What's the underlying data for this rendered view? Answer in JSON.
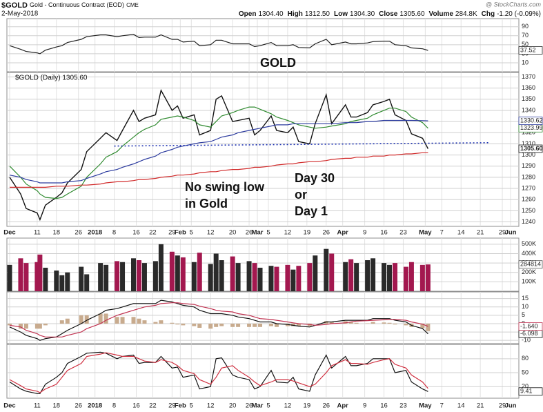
{
  "header": {
    "symbol": "$GOLD",
    "name": "Gold - Continuous Contract (EOD)",
    "exchange": "CME",
    "date": "2-May-2018",
    "source": "@ StockCharts.com",
    "quote": [
      {
        "label": "Open",
        "value": "1304.40"
      },
      {
        "label": "High",
        "value": "1312.50"
      },
      {
        "label": "Low",
        "value": "1304.30"
      },
      {
        "label": "Close",
        "value": "1305.60"
      },
      {
        "label": "Volume",
        "value": "284.8K"
      },
      {
        "label": "Chg",
        "value": "-1.20 (-0.09%)"
      }
    ]
  },
  "x_axis": {
    "x": [
      0,
      4,
      6,
      10,
      11,
      13,
      17,
      19,
      21,
      26,
      28,
      33,
      35,
      39,
      41,
      45,
      47,
      49,
      53,
      55,
      59,
      61,
      63,
      67,
      69,
      73,
      75,
      77,
      81,
      83,
      87,
      89,
      91,
      95,
      97,
      101,
      103,
      105,
      109,
      111,
      115,
      117,
      122,
      124,
      126,
      130,
      132,
      136,
      138,
      140,
      144,
      146,
      150,
      152
    ],
    "xlim": [
      -1,
      185
    ],
    "xticks": [
      {
        "value": 0,
        "label": "Dec"
      },
      {
        "value": 10,
        "label": "11"
      },
      {
        "value": 17,
        "label": "18"
      },
      {
        "value": 25,
        "label": "26"
      },
      {
        "value": 31,
        "label": "2018"
      },
      {
        "value": 38,
        "label": "8"
      },
      {
        "value": 46,
        "label": "16"
      },
      {
        "value": 52,
        "label": "22"
      },
      {
        "value": 59,
        "label": "29"
      },
      {
        "value": 62,
        "label": "Feb"
      },
      {
        "value": 66,
        "label": "5"
      },
      {
        "value": 73,
        "label": "12"
      },
      {
        "value": 81,
        "label": "20"
      },
      {
        "value": 87,
        "label": "26"
      },
      {
        "value": 90,
        "label": "Mar"
      },
      {
        "value": 94,
        "label": "5"
      },
      {
        "value": 101,
        "label": "12"
      },
      {
        "value": 108,
        "label": "19"
      },
      {
        "value": 115,
        "label": "26"
      },
      {
        "value": 121,
        "label": "Apr"
      },
      {
        "value": 129,
        "label": "9"
      },
      {
        "value": 136,
        "label": "16"
      },
      {
        "value": 143,
        "label": "23"
      },
      {
        "value": 151,
        "label": "May"
      },
      {
        "value": 157,
        "label": "7"
      },
      {
        "value": 164,
        "label": "14"
      },
      {
        "value": 171,
        "label": "21"
      },
      {
        "value": 179,
        "label": "29"
      },
      {
        "value": 182,
        "label": "Jun"
      }
    ]
  },
  "chart_data": [
    {
      "type": "line",
      "ylim": [
        -10,
        108
      ],
      "yticks": [
        90,
        70,
        50,
        30,
        10
      ],
      "grid": true,
      "annotations": [
        {
          "lines": [
            "GOLD"
          ],
          "color": "#1f3fd6"
        }
      ],
      "series": [
        {
          "color": "#222222",
          "last_label": "37.52",
          "values": [
            48,
            40,
            35,
            32,
            30,
            38,
            45,
            48,
            55,
            62,
            68,
            72,
            72,
            68,
            70,
            73,
            66,
            67,
            67,
            72,
            62,
            62,
            56,
            58,
            48,
            50,
            60,
            60,
            52,
            52,
            52,
            46,
            48,
            55,
            48,
            48,
            50,
            44,
            43,
            52,
            62,
            50,
            56,
            52,
            52,
            54,
            57,
            58,
            58,
            50,
            48,
            43,
            41,
            37.52
          ]
        }
      ]
    },
    {
      "type": "line",
      "label": "$GOLD (Daily) 1305.60",
      "ylim": [
        1236,
        1374
      ],
      "yticks": [
        1370,
        1360,
        1350,
        1340,
        1330,
        1320,
        1310,
        1300,
        1290,
        1280,
        1270,
        1260,
        1250,
        1240
      ],
      "grid": true,
      "series": [
        {
          "color": "#111111",
          "last_label": "1305.60",
          "values": [
            1280,
            1265,
            1252,
            1248,
            1242,
            1255,
            1262,
            1266,
            1275,
            1287,
            1303,
            1315,
            1320,
            1313,
            1322,
            1340,
            1330,
            1333,
            1336,
            1358,
            1340,
            1344,
            1333,
            1336,
            1318,
            1322,
            1350,
            1353,
            1330,
            1331,
            1333,
            1318,
            1322,
            1335,
            1322,
            1320,
            1325,
            1312,
            1310,
            1328,
            1354,
            1328,
            1345,
            1334,
            1334,
            1338,
            1345,
            1348,
            1350,
            1336,
            1331,
            1319,
            1315,
            1305.6
          ]
        },
        {
          "color": "#2f8a2f",
          "last_label": "1323.99",
          "values": [
            1290,
            1280,
            1274,
            1268,
            1265,
            1262,
            1261,
            1262,
            1265,
            1272,
            1280,
            1292,
            1298,
            1303,
            1308,
            1316,
            1320,
            1323,
            1327,
            1332,
            1334,
            1335,
            1334,
            1331,
            1327,
            1325,
            1330,
            1335,
            1338,
            1340,
            1343,
            1343,
            1341,
            1337,
            1334,
            1331,
            1329,
            1327,
            1325,
            1324,
            1325,
            1326,
            1328,
            1330,
            1331,
            1333,
            1336,
            1340,
            1342,
            1342,
            1339,
            1334,
            1329,
            1323.99
          ]
        },
        {
          "color": "#2b3a9e",
          "last_label": "1330.62",
          "values": [
            1282,
            1280,
            1278,
            1276,
            1275,
            1275,
            1275,
            1275,
            1276,
            1277,
            1279,
            1283,
            1285,
            1287,
            1289,
            1292,
            1294,
            1296,
            1299,
            1302,
            1305,
            1307,
            1308,
            1310,
            1311,
            1312,
            1314,
            1316,
            1318,
            1320,
            1322,
            1323,
            1324,
            1326,
            1327,
            1327,
            1328,
            1328,
            1328,
            1328,
            1328,
            1328,
            1329,
            1329,
            1329,
            1330,
            1330,
            1331,
            1331,
            1331,
            1331,
            1331,
            1330.8,
            1330.62
          ]
        },
        {
          "color": "#d12a2a",
          "values": [
            1271,
            1271,
            1271,
            1271,
            1271,
            1271,
            1272,
            1272,
            1272,
            1273,
            1273,
            1274,
            1275,
            1276,
            1276,
            1277,
            1278,
            1278,
            1279,
            1280,
            1281,
            1282,
            1282,
            1283,
            1284,
            1285,
            1285,
            1286,
            1287,
            1287,
            1288,
            1289,
            1289,
            1290,
            1291,
            1292,
            1292,
            1293,
            1294,
            1294,
            1295,
            1296,
            1297,
            1297,
            1298,
            1298,
            1299,
            1299,
            1300,
            1300,
            1301,
            1301,
            1302,
            1302
          ]
        }
      ],
      "trendline": {
        "x": [
          38,
          174
        ],
        "values": [
          1308,
          1311
        ],
        "color": "#1a2fb0"
      },
      "annotations": [
        {
          "lines": [
            "No swing low",
            "in Gold"
          ],
          "color": "#9b2fd9"
        },
        {
          "lines": [
            "Day 30",
            "or",
            "Day 1"
          ],
          "color": "#e3231b"
        }
      ]
    },
    {
      "type": "bar",
      "ylim": [
        0,
        565000
      ],
      "yticks": [
        {
          "value": 500000,
          "label": "500K"
        },
        {
          "value": 400000,
          "label": "400K"
        },
        {
          "value": 300000,
          "label": "300K"
        },
        {
          "value": 200000,
          "label": "200K"
        },
        {
          "value": 100000,
          "label": "100K"
        }
      ],
      "grid": true,
      "up_color": "#2a2a2a",
      "down_color": "#a3184f",
      "series": [
        {
          "last_label": "284814",
          "values": [
            280000,
            350000,
            300000,
            310000,
            390000,
            250000,
            220000,
            170000,
            200000,
            260000,
            180000,
            300000,
            280000,
            320000,
            310000,
            350000,
            330000,
            300000,
            320000,
            500000,
            420000,
            380000,
            360000,
            310000,
            410000,
            290000,
            400000,
            330000,
            370000,
            300000,
            320000,
            300000,
            250000,
            270000,
            260000,
            280000,
            230000,
            270000,
            300000,
            380000,
            450000,
            400000,
            310000,
            340000,
            300000,
            330000,
            350000,
            300000,
            280000,
            300000,
            260000,
            310000,
            280000,
            284814
          ]
        }
      ]
    },
    {
      "type": "line",
      "ylim": [
        -12,
        19
      ],
      "yticks": [
        15,
        10,
        5,
        0,
        -5,
        -10
      ],
      "grid": true,
      "histogram": {
        "color": "#c8ab8e",
        "values": [
          -1,
          -3,
          -3,
          -3,
          -3,
          -1,
          0,
          2,
          3,
          5,
          5,
          6,
          6,
          4,
          4,
          4,
          3,
          2,
          1,
          2,
          0.5,
          -0.5,
          -1,
          -1.5,
          -2.5,
          -3,
          -2,
          -1.5,
          -2,
          -2,
          -2,
          -2,
          -2,
          -1.5,
          -2,
          -1.5,
          -1.5,
          -1.5,
          -1.5,
          0,
          1.5,
          1,
          1.5,
          1,
          0.5,
          0.2,
          1,
          0.7,
          0.5,
          -0.5,
          -1,
          -2,
          -2.7,
          -4.458
        ]
      },
      "series": [
        {
          "color": "#111111",
          "last_label": "-6.098",
          "values": [
            -2,
            -5,
            -7,
            -9,
            -10,
            -9,
            -8,
            -6,
            -4,
            0,
            2,
            6,
            8,
            9,
            10,
            12,
            12,
            12,
            12,
            14,
            13,
            12,
            11,
            10,
            8,
            6,
            6,
            6,
            5,
            4,
            3,
            2,
            1,
            1,
            0,
            -0.5,
            -1,
            -1.5,
            -2,
            -1,
            1,
            1,
            2,
            2,
            2,
            2,
            3,
            3,
            3,
            2,
            1,
            -1,
            -3,
            -6.098
          ]
        },
        {
          "color": "#c0304f",
          "last_label": "-1.640",
          "values": [
            -1,
            -2,
            -4,
            -6,
            -7,
            -8,
            -8,
            -8,
            -7,
            -5,
            -3,
            0,
            2,
            5,
            6,
            8,
            9,
            10,
            11,
            12,
            12.5,
            12.5,
            12,
            11.5,
            10.5,
            9,
            8,
            7.5,
            7,
            6,
            5,
            4,
            3,
            2.5,
            2,
            1,
            0.5,
            0,
            -0.5,
            -1,
            -0.5,
            0,
            0.5,
            1,
            1.5,
            1.8,
            2,
            2.3,
            2.5,
            2.5,
            2,
            1,
            -0.3,
            -1.64
          ]
        }
      ]
    },
    {
      "type": "line",
      "ylim": [
        -5,
        111
      ],
      "yticks": [
        80,
        50,
        20
      ],
      "grid": true,
      "series": [
        {
          "color": "#111111",
          "last_label": "9.41",
          "values": [
            30,
            15,
            10,
            5,
            5,
            25,
            40,
            50,
            70,
            85,
            92,
            94,
            92,
            80,
            85,
            88,
            70,
            72,
            72,
            85,
            60,
            62,
            40,
            45,
            15,
            20,
            80,
            82,
            45,
            40,
            35,
            15,
            20,
            55,
            30,
            28,
            40,
            15,
            10,
            45,
            88,
            60,
            85,
            65,
            65,
            70,
            80,
            80,
            80,
            50,
            55,
            30,
            15,
            9.41
          ]
        },
        {
          "color": "#d03040",
          "values": [
            35,
            22,
            15,
            10,
            7,
            15,
            25,
            40,
            55,
            70,
            85,
            90,
            93,
            88,
            85,
            85,
            80,
            75,
            72,
            78,
            72,
            65,
            55,
            48,
            35,
            25,
            40,
            60,
            65,
            55,
            40,
            30,
            22,
            30,
            35,
            35,
            32,
            28,
            20,
            25,
            50,
            65,
            78,
            70,
            70,
            68,
            72,
            78,
            80,
            68,
            60,
            45,
            30,
            16
          ]
        }
      ]
    }
  ]
}
